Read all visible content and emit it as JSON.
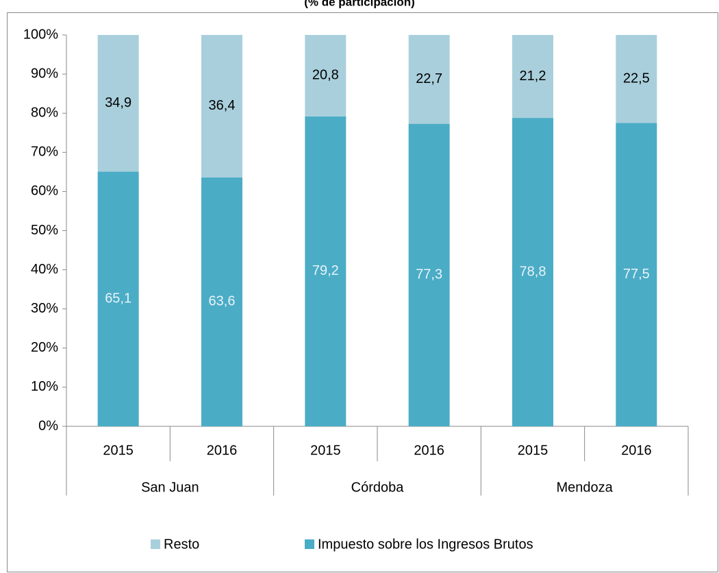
{
  "chart_data": {
    "type": "stacked_bar",
    "title": "(% de participación)",
    "categories": [
      "2015",
      "2016",
      "2015",
      "2016",
      "2015",
      "2016"
    ],
    "groups": [
      "San Juan",
      "Córdoba",
      "Mendoza"
    ],
    "series": [
      {
        "name": "Impuesto sobre los Ingresos Brutos",
        "color": "#4bacc6",
        "label_color": "#e8f4f8",
        "values": [
          65.1,
          63.6,
          79.2,
          77.3,
          78.8,
          77.5
        ],
        "value_labels": [
          "65,1",
          "63,6",
          "79,2",
          "77,3",
          "78,8",
          "77,5"
        ]
      },
      {
        "name": "Resto",
        "color": "#a9cfdc",
        "label_color": "#000000",
        "values": [
          34.9,
          36.4,
          20.8,
          22.7,
          21.2,
          22.5
        ],
        "value_labels": [
          "34,9",
          "36,4",
          "20,8",
          "22,7",
          "21,2",
          "22,5"
        ]
      }
    ],
    "ylim": [
      0,
      100
    ],
    "yticks": [
      {
        "value": 0,
        "label": "0%"
      },
      {
        "value": 10,
        "label": "10%"
      },
      {
        "value": 20,
        "label": "20%"
      },
      {
        "value": 30,
        "label": "30%"
      },
      {
        "value": 40,
        "label": "40%"
      },
      {
        "value": 50,
        "label": "50%"
      },
      {
        "value": 60,
        "label": "60%"
      },
      {
        "value": 70,
        "label": "70%"
      },
      {
        "value": 80,
        "label": "80%"
      },
      {
        "value": 90,
        "label": "90%"
      },
      {
        "value": 100,
        "label": "100%"
      }
    ],
    "grid": false,
    "legend": "bottom"
  }
}
